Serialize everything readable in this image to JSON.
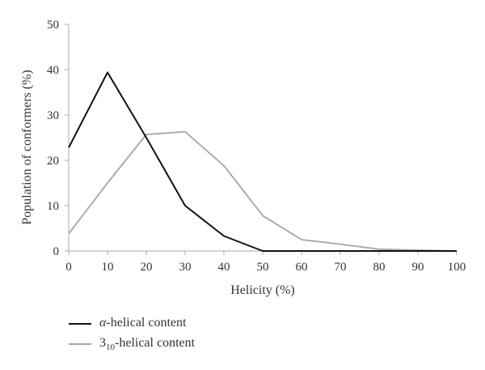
{
  "chart_data": {
    "type": "line",
    "xlabel": "Helicity (%)",
    "ylabel": "Population of conformers (%)",
    "xlim": [
      0,
      100
    ],
    "ylim": [
      0,
      50
    ],
    "x_ticks": [
      "0",
      "10",
      "20",
      "30",
      "40",
      "50",
      "60",
      "70",
      "80",
      "90",
      "100"
    ],
    "y_ticks": [
      "0",
      "10",
      "20",
      "30",
      "40",
      "50"
    ],
    "grid": false,
    "legend_position": "bottom-left",
    "series": [
      {
        "name_symbol": "α",
        "name_text": "-helical content",
        "color": "#111111",
        "x": [
          0,
          10,
          20,
          30,
          40,
          50,
          60,
          70,
          80,
          90,
          100
        ],
        "y": [
          22.8,
          39.4,
          25.0,
          10.0,
          3.3,
          0.0,
          0.0,
          0.0,
          0.0,
          0.0,
          0.0
        ]
      },
      {
        "name_base": "3",
        "name_sub": "10",
        "name_text": "-helical content",
        "color": "#a6a6a6",
        "x": [
          0,
          10,
          20,
          30,
          40,
          50,
          60,
          70,
          80,
          90,
          100
        ],
        "y": [
          3.8,
          15.0,
          25.7,
          26.3,
          18.8,
          7.8,
          2.5,
          1.5,
          0.4,
          0.2,
          0.0
        ]
      }
    ]
  }
}
